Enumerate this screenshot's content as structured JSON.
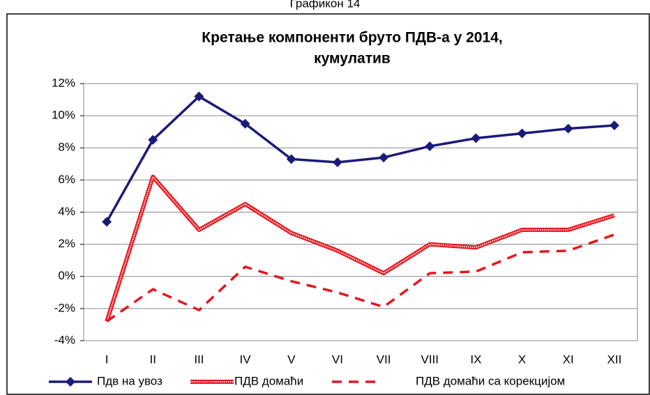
{
  "caption": "Графикон 14",
  "chart_data": {
    "type": "line",
    "title": "Кретање компоненти бруто ПДВ-а у 2014,",
    "subtitle": "кумулатив",
    "categories": [
      "I",
      "II",
      "III",
      "IV",
      "V",
      "VI",
      "VII",
      "VIII",
      "IX",
      "X",
      "XI",
      "XII"
    ],
    "series": [
      {
        "name": "Пдв на увоз",
        "color": "#1a1a7a",
        "style": "solid",
        "marker": "diamond",
        "values": [
          3.4,
          8.5,
          11.2,
          9.5,
          7.3,
          7.1,
          7.4,
          8.1,
          8.6,
          8.9,
          9.2,
          9.4
        ]
      },
      {
        "name": "ПДВ домаћи",
        "color": "#e8141c",
        "style": "hatched",
        "values": [
          -2.8,
          6.2,
          2.9,
          4.5,
          2.7,
          1.6,
          0.2,
          2.0,
          1.8,
          2.9,
          2.9,
          3.8
        ]
      },
      {
        "name": "ПДВ домаћи са корекцијом",
        "color": "#e8141c",
        "style": "dashed",
        "values": [
          -2.8,
          -0.8,
          -2.1,
          0.6,
          -0.3,
          -1.0,
          -1.9,
          0.2,
          0.3,
          1.5,
          1.6,
          2.6
        ]
      }
    ],
    "ylim": [
      -4,
      12
    ],
    "yticks": [
      {
        "value": -4,
        "label": "-4%"
      },
      {
        "value": -2,
        "label": "-2%"
      },
      {
        "value": 0,
        "label": "0%"
      },
      {
        "value": 2,
        "label": "2%"
      },
      {
        "value": 4,
        "label": "4%"
      },
      {
        "value": 6,
        "label": "6%"
      },
      {
        "value": 8,
        "label": "8%"
      },
      {
        "value": 10,
        "label": "10%"
      },
      {
        "value": 12,
        "label": "12%"
      }
    ],
    "grid": true,
    "legend": "bottom"
  }
}
